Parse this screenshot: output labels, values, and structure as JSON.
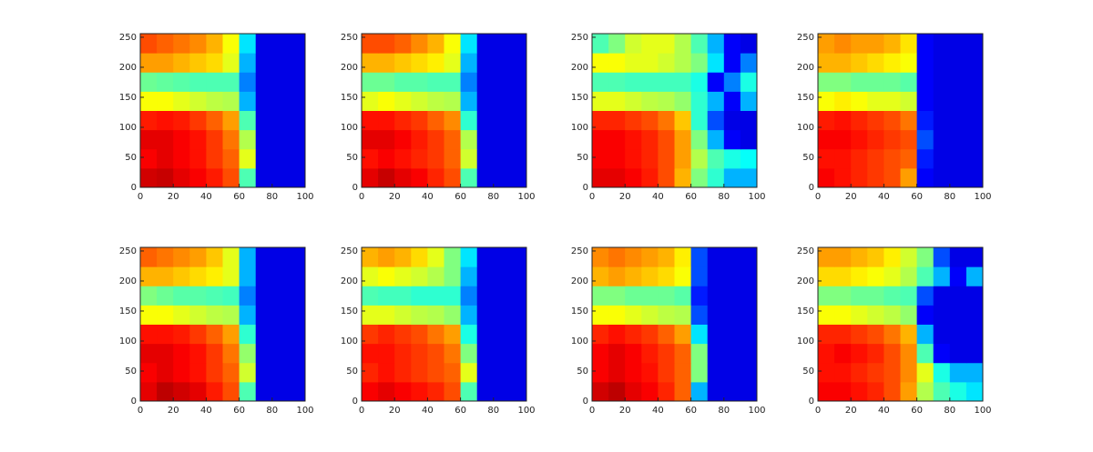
{
  "chart_data": [
    {
      "type": "heatmap",
      "x": [
        5,
        15,
        25,
        35,
        45,
        55,
        65,
        75,
        85,
        95
      ],
      "y": [
        16,
        48,
        80,
        112,
        144,
        176,
        208,
        240
      ],
      "xlim": [
        0,
        100
      ],
      "ylim": [
        0,
        256
      ],
      "xticks": [
        0,
        20,
        40,
        60,
        80,
        100
      ],
      "yticks": [
        0,
        50,
        100,
        150,
        200,
        250
      ],
      "values": [
        [
          0.92,
          0.93,
          0.9,
          0.88,
          0.85,
          0.8,
          0.45,
          0.1,
          0.1,
          0.1
        ],
        [
          0.88,
          0.9,
          0.88,
          0.86,
          0.82,
          0.78,
          0.6,
          0.1,
          0.1,
          0.1
        ],
        [
          0.9,
          0.9,
          0.88,
          0.86,
          0.82,
          0.76,
          0.55,
          0.1,
          0.1,
          0.1
        ],
        [
          0.85,
          0.86,
          0.85,
          0.82,
          0.78,
          0.72,
          0.45,
          0.1,
          0.1,
          0.1
        ],
        [
          0.62,
          0.62,
          0.6,
          0.58,
          0.56,
          0.55,
          0.3,
          0.1,
          0.1,
          0.1
        ],
        [
          0.48,
          0.47,
          0.46,
          0.45,
          0.45,
          0.45,
          0.25,
          0.1,
          0.1,
          0.1
        ],
        [
          0.72,
          0.72,
          0.7,
          0.68,
          0.66,
          0.6,
          0.3,
          0.1,
          0.1,
          0.1
        ],
        [
          0.8,
          0.78,
          0.76,
          0.74,
          0.7,
          0.62,
          0.35,
          0.1,
          0.1,
          0.1
        ]
      ]
    },
    {
      "type": "heatmap",
      "x": [
        5,
        15,
        25,
        35,
        45,
        55,
        65,
        75,
        85,
        95
      ],
      "y": [
        16,
        48,
        80,
        112,
        144,
        176,
        208,
        240
      ],
      "xlim": [
        0,
        100
      ],
      "ylim": [
        0,
        256
      ],
      "xticks": [
        0,
        20,
        40,
        60,
        80,
        100
      ],
      "yticks": [
        0,
        50,
        100,
        150,
        200,
        250
      ],
      "values": [
        [
          0.9,
          0.93,
          0.9,
          0.88,
          0.84,
          0.8,
          0.45,
          0.1,
          0.1,
          0.1
        ],
        [
          0.86,
          0.88,
          0.86,
          0.84,
          0.82,
          0.78,
          0.58,
          0.1,
          0.1,
          0.1
        ],
        [
          0.9,
          0.9,
          0.88,
          0.85,
          0.82,
          0.78,
          0.55,
          0.1,
          0.1,
          0.1
        ],
        [
          0.86,
          0.86,
          0.84,
          0.82,
          0.78,
          0.74,
          0.42,
          0.1,
          0.1,
          0.1
        ],
        [
          0.6,
          0.62,
          0.6,
          0.58,
          0.56,
          0.55,
          0.3,
          0.1,
          0.1,
          0.1
        ],
        [
          0.48,
          0.48,
          0.46,
          0.46,
          0.45,
          0.45,
          0.25,
          0.1,
          0.1,
          0.1
        ],
        [
          0.7,
          0.7,
          0.68,
          0.66,
          0.64,
          0.6,
          0.3,
          0.1,
          0.1,
          0.1
        ],
        [
          0.8,
          0.8,
          0.78,
          0.74,
          0.7,
          0.62,
          0.35,
          0.1,
          0.1,
          0.1
        ]
      ]
    },
    {
      "type": "heatmap",
      "x": [
        5,
        15,
        25,
        35,
        45,
        55,
        65,
        75,
        85,
        95
      ],
      "y": [
        16,
        48,
        80,
        112,
        144,
        176,
        208,
        240
      ],
      "xlim": [
        0,
        100
      ],
      "ylim": [
        0,
        256
      ],
      "xticks": [
        0,
        20,
        40,
        60,
        80,
        100
      ],
      "yticks": [
        0,
        50,
        100,
        150,
        200,
        250
      ],
      "values": [
        [
          0.9,
          0.9,
          0.88,
          0.85,
          0.8,
          0.7,
          0.5,
          0.42,
          0.3,
          0.3
        ],
        [
          0.88,
          0.88,
          0.86,
          0.84,
          0.8,
          0.72,
          0.55,
          0.45,
          0.4,
          0.38
        ],
        [
          0.88,
          0.88,
          0.86,
          0.84,
          0.8,
          0.72,
          0.5,
          0.3,
          0.12,
          0.1
        ],
        [
          0.84,
          0.84,
          0.82,
          0.8,
          0.76,
          0.68,
          0.42,
          0.2,
          0.1,
          0.1
        ],
        [
          0.6,
          0.6,
          0.58,
          0.56,
          0.55,
          0.52,
          0.42,
          0.3,
          0.12,
          0.3
        ],
        [
          0.45,
          0.45,
          0.44,
          0.44,
          0.44,
          0.44,
          0.4,
          0.12,
          0.25,
          0.4
        ],
        [
          0.62,
          0.62,
          0.6,
          0.6,
          0.58,
          0.55,
          0.5,
          0.35,
          0.12,
          0.25
        ],
        [
          0.45,
          0.5,
          0.58,
          0.6,
          0.6,
          0.55,
          0.45,
          0.3,
          0.12,
          0.1
        ]
      ]
    },
    {
      "type": "heatmap",
      "x": [
        5,
        15,
        25,
        35,
        45,
        55,
        65,
        75,
        85,
        95
      ],
      "y": [
        16,
        48,
        80,
        112,
        144,
        176,
        208,
        240
      ],
      "xlim": [
        0,
        100
      ],
      "ylim": [
        0,
        256
      ],
      "xticks": [
        0,
        20,
        40,
        60,
        80,
        100
      ],
      "yticks": [
        0,
        50,
        100,
        150,
        200,
        250
      ],
      "values": [
        [
          0.88,
          0.86,
          0.84,
          0.82,
          0.8,
          0.72,
          0.12,
          0.1,
          0.1,
          0.1
        ],
        [
          0.86,
          0.86,
          0.84,
          0.82,
          0.8,
          0.78,
          0.15,
          0.1,
          0.1,
          0.1
        ],
        [
          0.88,
          0.88,
          0.86,
          0.84,
          0.82,
          0.8,
          0.2,
          0.1,
          0.1,
          0.1
        ],
        [
          0.85,
          0.86,
          0.84,
          0.82,
          0.8,
          0.76,
          0.15,
          0.1,
          0.1,
          0.1
        ],
        [
          0.62,
          0.64,
          0.62,
          0.6,
          0.6,
          0.58,
          0.12,
          0.1,
          0.1,
          0.1
        ],
        [
          0.5,
          0.5,
          0.48,
          0.48,
          0.48,
          0.46,
          0.12,
          0.1,
          0.1,
          0.1
        ],
        [
          0.7,
          0.7,
          0.68,
          0.66,
          0.64,
          0.62,
          0.12,
          0.1,
          0.1,
          0.1
        ],
        [
          0.72,
          0.74,
          0.72,
          0.72,
          0.7,
          0.65,
          0.12,
          0.1,
          0.1,
          0.1
        ]
      ]
    },
    {
      "type": "heatmap",
      "x": [
        5,
        15,
        25,
        35,
        45,
        55,
        65,
        75,
        85,
        95
      ],
      "y": [
        16,
        48,
        80,
        112,
        144,
        176,
        208,
        240
      ],
      "xlim": [
        0,
        100
      ],
      "ylim": [
        0,
        256
      ],
      "xticks": [
        0,
        20,
        40,
        60,
        80,
        100
      ],
      "yticks": [
        0,
        50,
        100,
        150,
        200,
        250
      ],
      "values": [
        [
          0.9,
          0.94,
          0.92,
          0.9,
          0.85,
          0.8,
          0.45,
          0.1,
          0.1,
          0.1
        ],
        [
          0.88,
          0.9,
          0.88,
          0.86,
          0.82,
          0.78,
          0.58,
          0.1,
          0.1,
          0.1
        ],
        [
          0.9,
          0.9,
          0.88,
          0.86,
          0.82,
          0.76,
          0.52,
          0.1,
          0.1,
          0.1
        ],
        [
          0.86,
          0.86,
          0.85,
          0.82,
          0.78,
          0.72,
          0.42,
          0.1,
          0.1,
          0.1
        ],
        [
          0.62,
          0.62,
          0.6,
          0.58,
          0.56,
          0.55,
          0.3,
          0.1,
          0.1,
          0.1
        ],
        [
          0.5,
          0.48,
          0.46,
          0.46,
          0.45,
          0.44,
          0.25,
          0.1,
          0.1,
          0.1
        ],
        [
          0.7,
          0.7,
          0.68,
          0.66,
          0.64,
          0.6,
          0.3,
          0.1,
          0.1,
          0.1
        ],
        [
          0.78,
          0.76,
          0.74,
          0.72,
          0.68,
          0.6,
          0.3,
          0.1,
          0.1,
          0.1
        ]
      ]
    },
    {
      "type": "heatmap",
      "x": [
        5,
        15,
        25,
        35,
        45,
        55,
        65,
        75,
        85,
        95
      ],
      "y": [
        16,
        48,
        80,
        112,
        144,
        176,
        208,
        240
      ],
      "xlim": [
        0,
        100
      ],
      "ylim": [
        0,
        256
      ],
      "xticks": [
        0,
        20,
        40,
        60,
        80,
        100
      ],
      "yticks": [
        0,
        50,
        100,
        150,
        200,
        250
      ],
      "values": [
        [
          0.88,
          0.9,
          0.88,
          0.86,
          0.84,
          0.8,
          0.45,
          0.1,
          0.1,
          0.1
        ],
        [
          0.84,
          0.86,
          0.84,
          0.82,
          0.8,
          0.78,
          0.6,
          0.1,
          0.1,
          0.1
        ],
        [
          0.86,
          0.86,
          0.84,
          0.82,
          0.8,
          0.76,
          0.5,
          0.1,
          0.1,
          0.1
        ],
        [
          0.82,
          0.84,
          0.82,
          0.8,
          0.76,
          0.72,
          0.4,
          0.1,
          0.1,
          0.1
        ],
        [
          0.6,
          0.6,
          0.58,
          0.56,
          0.55,
          0.52,
          0.3,
          0.1,
          0.1,
          0.1
        ],
        [
          0.45,
          0.44,
          0.44,
          0.42,
          0.42,
          0.42,
          0.25,
          0.1,
          0.1,
          0.1
        ],
        [
          0.6,
          0.62,
          0.6,
          0.58,
          0.55,
          0.5,
          0.3,
          0.1,
          0.1,
          0.1
        ],
        [
          0.7,
          0.72,
          0.7,
          0.66,
          0.6,
          0.5,
          0.35,
          0.1,
          0.1,
          0.1
        ]
      ]
    },
    {
      "type": "heatmap",
      "x": [
        5,
        15,
        25,
        35,
        45,
        55,
        65,
        75,
        85,
        95
      ],
      "y": [
        16,
        48,
        80,
        112,
        144,
        176,
        208,
        240
      ],
      "xlim": [
        0,
        100
      ],
      "ylim": [
        0,
        256
      ],
      "xticks": [
        0,
        20,
        40,
        60,
        80,
        100
      ],
      "yticks": [
        0,
        50,
        100,
        150,
        200,
        250
      ],
      "values": [
        [
          0.92,
          0.94,
          0.9,
          0.88,
          0.84,
          0.78,
          0.3,
          0.1,
          0.1,
          0.1
        ],
        [
          0.88,
          0.9,
          0.88,
          0.86,
          0.82,
          0.78,
          0.5,
          0.1,
          0.1,
          0.1
        ],
        [
          0.88,
          0.9,
          0.88,
          0.85,
          0.82,
          0.78,
          0.5,
          0.1,
          0.1,
          0.1
        ],
        [
          0.84,
          0.86,
          0.84,
          0.82,
          0.78,
          0.72,
          0.35,
          0.1,
          0.1,
          0.1
        ],
        [
          0.62,
          0.62,
          0.6,
          0.58,
          0.56,
          0.55,
          0.2,
          0.1,
          0.1,
          0.1
        ],
        [
          0.5,
          0.5,
          0.48,
          0.48,
          0.48,
          0.46,
          0.15,
          0.1,
          0.1,
          0.1
        ],
        [
          0.7,
          0.72,
          0.7,
          0.68,
          0.66,
          0.62,
          0.2,
          0.1,
          0.1,
          0.1
        ],
        [
          0.74,
          0.76,
          0.74,
          0.72,
          0.7,
          0.64,
          0.2,
          0.1,
          0.1,
          0.1
        ]
      ]
    },
    {
      "type": "heatmap",
      "x": [
        5,
        15,
        25,
        35,
        45,
        55,
        65,
        75,
        85,
        95
      ],
      "y": [
        16,
        48,
        80,
        112,
        144,
        176,
        208,
        240
      ],
      "xlim": [
        0,
        100
      ],
      "ylim": [
        0,
        256
      ],
      "xticks": [
        0,
        20,
        40,
        60,
        80,
        100
      ],
      "yticks": [
        0,
        50,
        100,
        150,
        200,
        250
      ],
      "values": [
        [
          0.88,
          0.88,
          0.86,
          0.84,
          0.8,
          0.72,
          0.55,
          0.45,
          0.4,
          0.35
        ],
        [
          0.86,
          0.86,
          0.84,
          0.82,
          0.8,
          0.74,
          0.6,
          0.4,
          0.3,
          0.3
        ],
        [
          0.86,
          0.88,
          0.86,
          0.84,
          0.8,
          0.74,
          0.45,
          0.12,
          0.1,
          0.1
        ],
        [
          0.84,
          0.84,
          0.82,
          0.8,
          0.76,
          0.7,
          0.3,
          0.1,
          0.1,
          0.1
        ],
        [
          0.62,
          0.62,
          0.6,
          0.58,
          0.56,
          0.52,
          0.12,
          0.1,
          0.1,
          0.1
        ],
        [
          0.5,
          0.5,
          0.48,
          0.48,
          0.46,
          0.45,
          0.2,
          0.1,
          0.1,
          0.1
        ],
        [
          0.66,
          0.66,
          0.64,
          0.62,
          0.6,
          0.55,
          0.45,
          0.3,
          0.12,
          0.3
        ],
        [
          0.72,
          0.72,
          0.7,
          0.68,
          0.64,
          0.58,
          0.5,
          0.2,
          0.1,
          0.1
        ]
      ]
    }
  ]
}
